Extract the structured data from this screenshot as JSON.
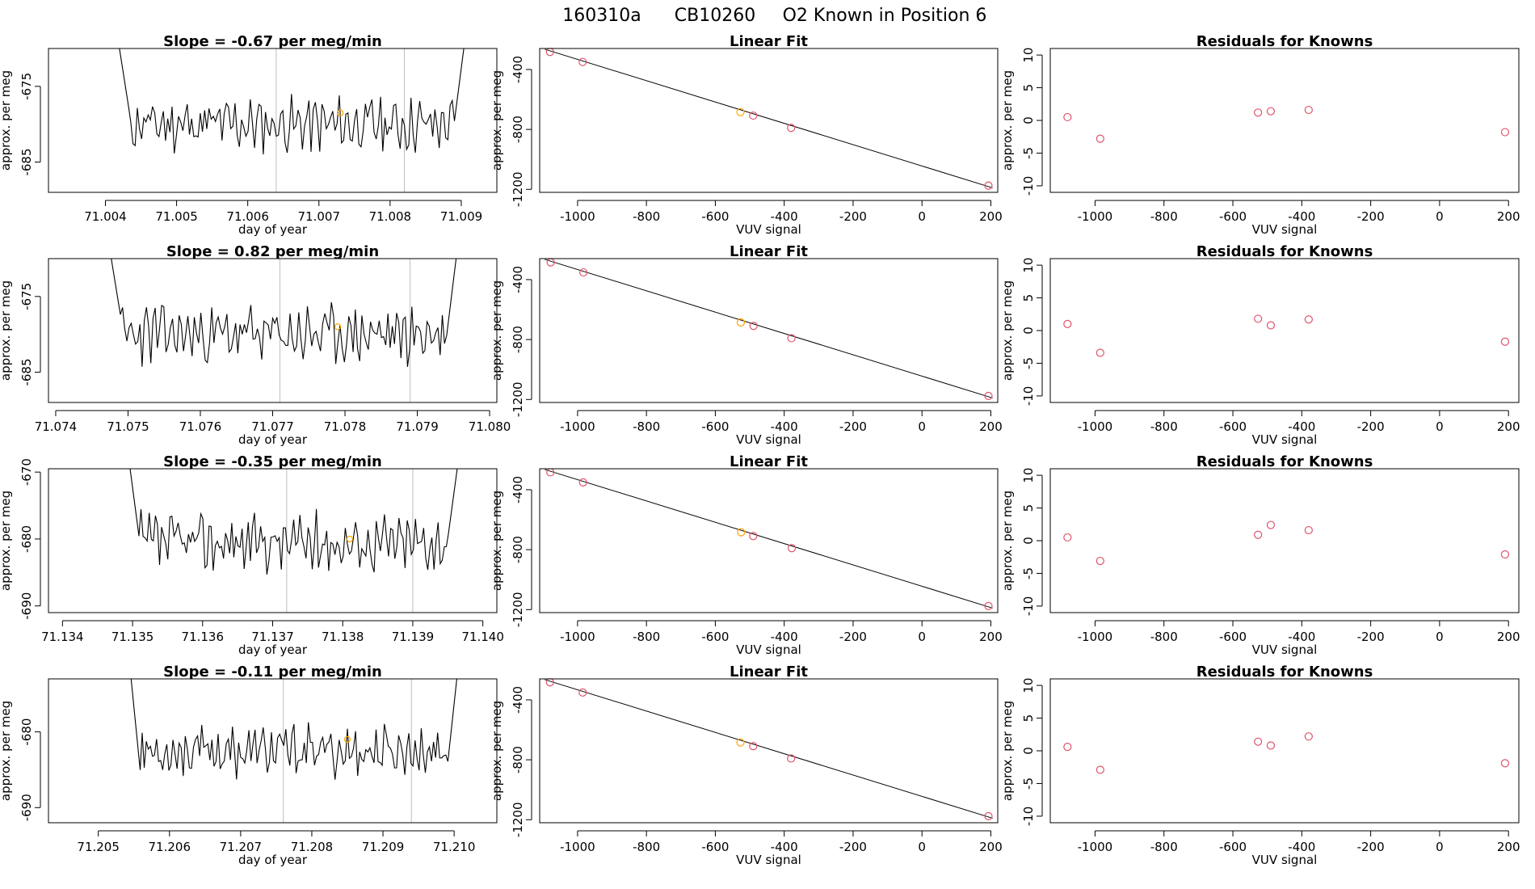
{
  "figure": {
    "title_id": "160310a",
    "title_instrument": "CB10260",
    "title_known": "O2 Known in Position  6"
  },
  "colors": {
    "trace": "#000000",
    "marker": "#ffa500",
    "residual_point": "#df536b",
    "fit_line": "#000000",
    "vline": "#bebebe"
  },
  "chart_data": [
    {
      "type": "line",
      "panel": "timeseries",
      "row": 0,
      "title": "Slope =  -0.67  per meg/min",
      "xlabel": "day of year",
      "ylabel": "approx. per meg",
      "xlim": [
        71.0032,
        71.0095
      ],
      "ylim": [
        -689,
        -670
      ],
      "xticks": [
        "71.004",
        "71.005",
        "71.006",
        "71.007",
        "71.008",
        "71.009"
      ],
      "xtick_values": [
        71.004,
        71.005,
        71.006,
        71.007,
        71.008,
        71.009
      ],
      "yticks": [
        "-675",
        "-685"
      ],
      "ytick_values": [
        -675,
        -685
      ],
      "vlines": [
        71.0064,
        71.0082
      ],
      "trace_start": 71.00418,
      "trace_end": 71.00905,
      "trace_mean": -680,
      "trace_amp": 2.8,
      "marker": {
        "x": 71.0073,
        "y": -678.5
      },
      "seed": 11
    },
    {
      "type": "line",
      "panel": "timeseries",
      "row": 1,
      "title": "Slope =  0.82  per meg/min",
      "xlabel": "day of year",
      "ylabel": "approx. per meg",
      "xlim": [
        71.0739,
        71.0801
      ],
      "ylim": [
        -689,
        -670
      ],
      "xticks": [
        "71.074",
        "71.075",
        "71.076",
        "71.077",
        "71.078",
        "71.079",
        "71.080"
      ],
      "xtick_values": [
        71.074,
        71.075,
        71.076,
        71.077,
        71.078,
        71.079,
        71.08
      ],
      "yticks": [
        "-675",
        "-685"
      ],
      "ytick_values": [
        -675,
        -685
      ],
      "vlines": [
        71.0771,
        71.0789
      ],
      "trace_start": 71.07475,
      "trace_end": 71.07955,
      "trace_mean": -680,
      "trace_amp": 3,
      "marker": {
        "x": 71.0779,
        "y": -679
      },
      "seed": 23
    },
    {
      "type": "line",
      "panel": "timeseries",
      "row": 2,
      "title": "Slope =  -0.35  per meg/min",
      "xlabel": "day of year",
      "ylabel": "approx. per meg",
      "xlim": [
        71.1338,
        71.1402
      ],
      "ylim": [
        -691,
        -669.5
      ],
      "xticks": [
        "71.134",
        "71.135",
        "71.136",
        "71.137",
        "71.138",
        "71.139",
        "71.140"
      ],
      "xtick_values": [
        71.134,
        71.135,
        71.136,
        71.137,
        71.138,
        71.139,
        71.14
      ],
      "yticks": [
        "-670",
        "-680",
        "-690"
      ],
      "ytick_values": [
        -670,
        -680,
        -690
      ],
      "vlines": [
        71.1372,
        71.139
      ],
      "trace_start": 71.13495,
      "trace_end": 71.13965,
      "trace_mean": -680.5,
      "trace_amp": 3.4,
      "marker": {
        "x": 71.1381,
        "y": -680
      },
      "seed": 37
    },
    {
      "type": "line",
      "panel": "timeseries",
      "row": 3,
      "title": "Slope =  -0.11  per meg/min",
      "xlabel": "day of year",
      "ylabel": "approx. per meg",
      "xlim": [
        71.2043,
        71.2106
      ],
      "ylim": [
        -692,
        -673
      ],
      "xticks": [
        "71.205",
        "71.206",
        "71.207",
        "71.208",
        "71.209",
        "71.210"
      ],
      "xtick_values": [
        71.205,
        71.206,
        71.207,
        71.208,
        71.209,
        71.21
      ],
      "yticks": [
        "-680",
        "-690"
      ],
      "ytick_values": [
        -680,
        -690
      ],
      "vlines": [
        71.2076,
        71.2094
      ],
      "trace_start": 71.20545,
      "trace_end": 71.21005,
      "trace_mean": -682.5,
      "trace_amp": 2.6,
      "marker": {
        "x": 71.2085,
        "y": -681
      },
      "seed": 53
    },
    {
      "type": "scatter",
      "panel": "fit",
      "row": 0,
      "title": "Linear Fit",
      "xlabel": "VUV signal",
      "ylabel": "approx. per meg",
      "xlim": [
        -1110,
        220
      ],
      "ylim": [
        -1220,
        -260
      ],
      "xticks": [
        "-1000",
        "-800",
        "-600",
        "-400",
        "-200",
        "0",
        "200"
      ],
      "xtick_values": [
        -1000,
        -800,
        -600,
        -400,
        -200,
        0,
        200
      ],
      "yticks": [
        "-400",
        "-800",
        "-1200"
      ],
      "ytick_values": [
        -400,
        -800,
        -1200
      ],
      "line": {
        "x0": -1095,
        "y0": -265,
        "x1": 205,
        "y1": -1190
      },
      "points": [
        {
          "x": -1080,
          "y": -283,
          "known": false
        },
        {
          "x": -985,
          "y": -350,
          "known": false
        },
        {
          "x": -527,
          "y": -685,
          "known": true
        },
        {
          "x": -490,
          "y": -708,
          "known": false
        },
        {
          "x": -380,
          "y": -790,
          "known": false
        },
        {
          "x": 193,
          "y": -1175,
          "known": false
        }
      ]
    },
    {
      "type": "scatter",
      "panel": "fit",
      "row": 1,
      "title": "Linear Fit",
      "xlabel": "VUV signal",
      "ylabel": "approx. per meg",
      "xlim": [
        -1110,
        220
      ],
      "ylim": [
        -1220,
        -260
      ],
      "xticks": [
        "-1000",
        "-800",
        "-600",
        "-400",
        "-200",
        "0",
        "200"
      ],
      "xtick_values": [
        -1000,
        -800,
        -600,
        -400,
        -200,
        0,
        200
      ],
      "yticks": [
        "-400",
        "-800",
        "-1200"
      ],
      "ytick_values": [
        -400,
        -800,
        -1200
      ],
      "line": {
        "x0": -1095,
        "y0": -265,
        "x1": 205,
        "y1": -1190
      },
      "points": [
        {
          "x": -1078,
          "y": -285,
          "known": false
        },
        {
          "x": -983,
          "y": -352,
          "known": false
        },
        {
          "x": -526,
          "y": -686,
          "known": true
        },
        {
          "x": -489,
          "y": -709,
          "known": false
        },
        {
          "x": -379,
          "y": -791,
          "known": false
        },
        {
          "x": 193,
          "y": -1176,
          "known": false
        }
      ]
    },
    {
      "type": "scatter",
      "panel": "fit",
      "row": 2,
      "title": "Linear Fit",
      "xlabel": "VUV signal",
      "ylabel": "approx. per meg",
      "xlim": [
        -1110,
        220
      ],
      "ylim": [
        -1220,
        -260
      ],
      "xticks": [
        "-1000",
        "-800",
        "-600",
        "-400",
        "-200",
        "0",
        "200"
      ],
      "xtick_values": [
        -1000,
        -800,
        -600,
        -400,
        -200,
        0,
        200
      ],
      "yticks": [
        "-400",
        "-800",
        "-1200"
      ],
      "ytick_values": [
        -400,
        -800,
        -1200
      ],
      "line": {
        "x0": -1095,
        "y0": -265,
        "x1": 205,
        "y1": -1190
      },
      "points": [
        {
          "x": -1079,
          "y": -284,
          "known": false
        },
        {
          "x": -984,
          "y": -351,
          "known": false
        },
        {
          "x": -525,
          "y": -684,
          "known": true
        },
        {
          "x": -490,
          "y": -709,
          "known": false
        },
        {
          "x": -378,
          "y": -790,
          "known": false
        },
        {
          "x": 193,
          "y": -1176,
          "known": false
        }
      ]
    },
    {
      "type": "scatter",
      "panel": "fit",
      "row": 3,
      "title": "Linear Fit",
      "xlabel": "VUV signal",
      "ylabel": "approx. per meg",
      "xlim": [
        -1110,
        220
      ],
      "ylim": [
        -1220,
        -260
      ],
      "xticks": [
        "-1000",
        "-800",
        "-600",
        "-400",
        "-200",
        "0",
        "200"
      ],
      "xtick_values": [
        -1000,
        -800,
        -600,
        -400,
        -200,
        0,
        200
      ],
      "yticks": [
        "-400",
        "-800",
        "-1200"
      ],
      "ytick_values": [
        -400,
        -800,
        -1200
      ],
      "line": {
        "x0": -1095,
        "y0": -265,
        "x1": 205,
        "y1": -1190
      },
      "points": [
        {
          "x": -1080,
          "y": -283,
          "known": false
        },
        {
          "x": -985,
          "y": -351,
          "known": false
        },
        {
          "x": -527,
          "y": -685,
          "known": true
        },
        {
          "x": -490,
          "y": -709,
          "known": false
        },
        {
          "x": -380,
          "y": -791,
          "known": false
        },
        {
          "x": 193,
          "y": -1176,
          "known": false
        }
      ]
    },
    {
      "type": "scatter",
      "panel": "residuals",
      "row": 0,
      "title": "Residuals for Knowns",
      "xlabel": "VUV signal",
      "ylabel": "approx. per meg",
      "xlim": [
        -1130,
        230
      ],
      "ylim": [
        -11,
        11
      ],
      "xticks": [
        "-1000",
        "-800",
        "-600",
        "-400",
        "-200",
        "0",
        "200"
      ],
      "xtick_values": [
        -1000,
        -800,
        -600,
        -400,
        -200,
        0,
        200
      ],
      "yticks": [
        "10",
        "5",
        "0",
        "-5",
        "-10"
      ],
      "ytick_values": [
        10,
        5,
        0,
        -5,
        -10
      ],
      "points": [
        {
          "x": -1080,
          "y": 0.5
        },
        {
          "x": -985,
          "y": -2.8
        },
        {
          "x": -527,
          "y": 1.2
        },
        {
          "x": -490,
          "y": 1.4
        },
        {
          "x": -380,
          "y": 1.6
        },
        {
          "x": 190,
          "y": -1.8
        }
      ]
    },
    {
      "type": "scatter",
      "panel": "residuals",
      "row": 1,
      "title": "Residuals for Knowns",
      "xlabel": "VUV signal",
      "ylabel": "approx. per meg",
      "xlim": [
        -1130,
        230
      ],
      "ylim": [
        -11,
        11
      ],
      "xticks": [
        "-1000",
        "-800",
        "-600",
        "-400",
        "-200",
        "0",
        "200"
      ],
      "xtick_values": [
        -1000,
        -800,
        -600,
        -400,
        -200,
        0,
        200
      ],
      "yticks": [
        "10",
        "5",
        "0",
        "-5",
        "-10"
      ],
      "ytick_values": [
        10,
        5,
        0,
        -5,
        -10
      ],
      "points": [
        {
          "x": -1080,
          "y": 1.0
        },
        {
          "x": -985,
          "y": -3.4
        },
        {
          "x": -527,
          "y": 1.8
        },
        {
          "x": -490,
          "y": 0.8
        },
        {
          "x": -380,
          "y": 1.7
        },
        {
          "x": 190,
          "y": -1.7
        }
      ]
    },
    {
      "type": "scatter",
      "panel": "residuals",
      "row": 2,
      "title": "Residuals for Knowns",
      "xlabel": "VUV signal",
      "ylabel": "approx. per meg",
      "xlim": [
        -1130,
        230
      ],
      "ylim": [
        -11,
        11
      ],
      "xticks": [
        "-1000",
        "-800",
        "-600",
        "-400",
        "-200",
        "0",
        "200"
      ],
      "xtick_values": [
        -1000,
        -800,
        -600,
        -400,
        -200,
        0,
        200
      ],
      "yticks": [
        "10",
        "5",
        "0",
        "-5",
        "-10"
      ],
      "ytick_values": [
        10,
        5,
        0,
        -5,
        -10
      ],
      "points": [
        {
          "x": -1080,
          "y": 0.5
        },
        {
          "x": -985,
          "y": -3.1
        },
        {
          "x": -527,
          "y": 0.9
        },
        {
          "x": -490,
          "y": 2.4
        },
        {
          "x": -380,
          "y": 1.6
        },
        {
          "x": 190,
          "y": -2.1
        }
      ]
    },
    {
      "type": "scatter",
      "panel": "residuals",
      "row": 3,
      "title": "Residuals for Knowns",
      "xlabel": "VUV signal",
      "ylabel": "approx. per meg",
      "xlim": [
        -1130,
        230
      ],
      "ylim": [
        -11,
        11
      ],
      "xticks": [
        "-1000",
        "-800",
        "-600",
        "-400",
        "-200",
        "0",
        "200"
      ],
      "xtick_values": [
        -1000,
        -800,
        -600,
        -400,
        -200,
        0,
        200
      ],
      "yticks": [
        "10",
        "5",
        "0",
        "-5",
        "-10"
      ],
      "ytick_values": [
        10,
        5,
        0,
        -5,
        -10
      ],
      "points": [
        {
          "x": -1080,
          "y": 0.6
        },
        {
          "x": -985,
          "y": -2.9
        },
        {
          "x": -527,
          "y": 1.4
        },
        {
          "x": -490,
          "y": 0.8
        },
        {
          "x": -380,
          "y": 2.2
        },
        {
          "x": 190,
          "y": -1.9
        }
      ]
    }
  ]
}
